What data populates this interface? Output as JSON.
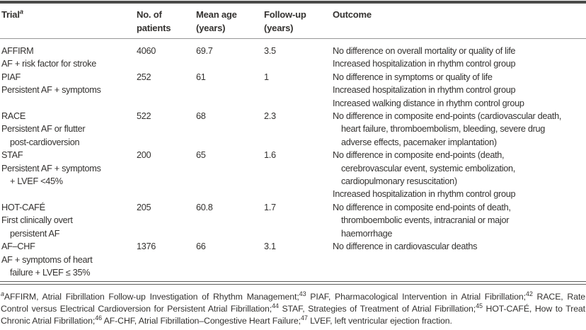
{
  "table": {
    "headers": {
      "trial": "Trial",
      "trial_sup": "a",
      "patients": [
        "No. of",
        "patients"
      ],
      "age": [
        "Mean age",
        "(years)"
      ],
      "followup": [
        "Follow-up",
        "(years)"
      ],
      "outcome": "Outcome"
    },
    "rows": [
      {
        "name": "AFFIRM",
        "desc": [
          "AF + risk factor for stroke"
        ],
        "patients": "4060",
        "age": "69.7",
        "followup": "3.5",
        "outcome": [
          "No difference on overall mortality or quality of life",
          "Increased hospitalization in rhythm control group"
        ]
      },
      {
        "name": "PIAF",
        "desc": [
          "Persistent AF + symptoms"
        ],
        "patients": "252",
        "age": "61",
        "followup": "1",
        "outcome": [
          "No difference in symptoms or quality of life",
          "Increased hospitalization in rhythm control group",
          "Increased walking distance in rhythm control group"
        ]
      },
      {
        "name": "RACE",
        "desc": [
          "Persistent AF or flutter",
          "post-cardioversion"
        ],
        "patients": "522",
        "age": "68",
        "followup": "2.3",
        "outcome": [
          "No difference in composite end-points (cardiovascular death,",
          "heart failure, thromboembolism, bleeding, severe drug",
          "adverse effects, pacemaker implantation)"
        ]
      },
      {
        "name": "STAF",
        "desc": [
          "Persistent AF + symptoms",
          "+ LVEF <45%"
        ],
        "patients": "200",
        "age": "65",
        "followup": "1.6",
        "outcome": [
          "No difference in composite end-points (death,",
          "cerebrovascular event, systemic embolization,",
          "cardiopulmonary resuscitation)",
          "Increased hospitalization in rhythm control group"
        ]
      },
      {
        "name": "HOT-CAFÉ",
        "desc": [
          "First clinically overt",
          "persistent AF"
        ],
        "patients": "205",
        "age": "60.8",
        "followup": "1.7",
        "outcome": [
          "No difference in composite end-points of death,",
          "thromboembolic events, intracranial or major",
          "haemorrhage"
        ]
      },
      {
        "name": "AF–CHF",
        "desc": [
          "AF + symptoms of heart",
          "failure + LVEF ≤ 35%"
        ],
        "patients": "1376",
        "age": "66",
        "followup": "3.1",
        "outcome": [
          "No difference in cardiovascular deaths"
        ]
      }
    ]
  },
  "footnote": {
    "marker": "a",
    "seg1": "AFFIRM, Atrial Fibrillation Follow-up Investigation of Rhythm Management;",
    "ref1": "43",
    "seg2": " PIAF, Pharmacological Intervention in Atrial Fibrillation;",
    "ref2": "42",
    "seg3": " RACE, Rate Control versus Electrical Cardioversion for Persistent Atrial Fibrillation;",
    "ref3": "44",
    "seg4": " STAF, Strategies of Treatment of Atrial Fibrillation;",
    "ref4": "45",
    "seg5": " HOT-CAFÉ, How to Treat Chronic Atrial Fibrillation;",
    "ref5": "46",
    "seg6": " AF-CHF, Atrial Fibrillation–Congestive Heart Failure;",
    "ref6": "47",
    "seg7": " LVEF, left ventricular ejection fraction."
  }
}
